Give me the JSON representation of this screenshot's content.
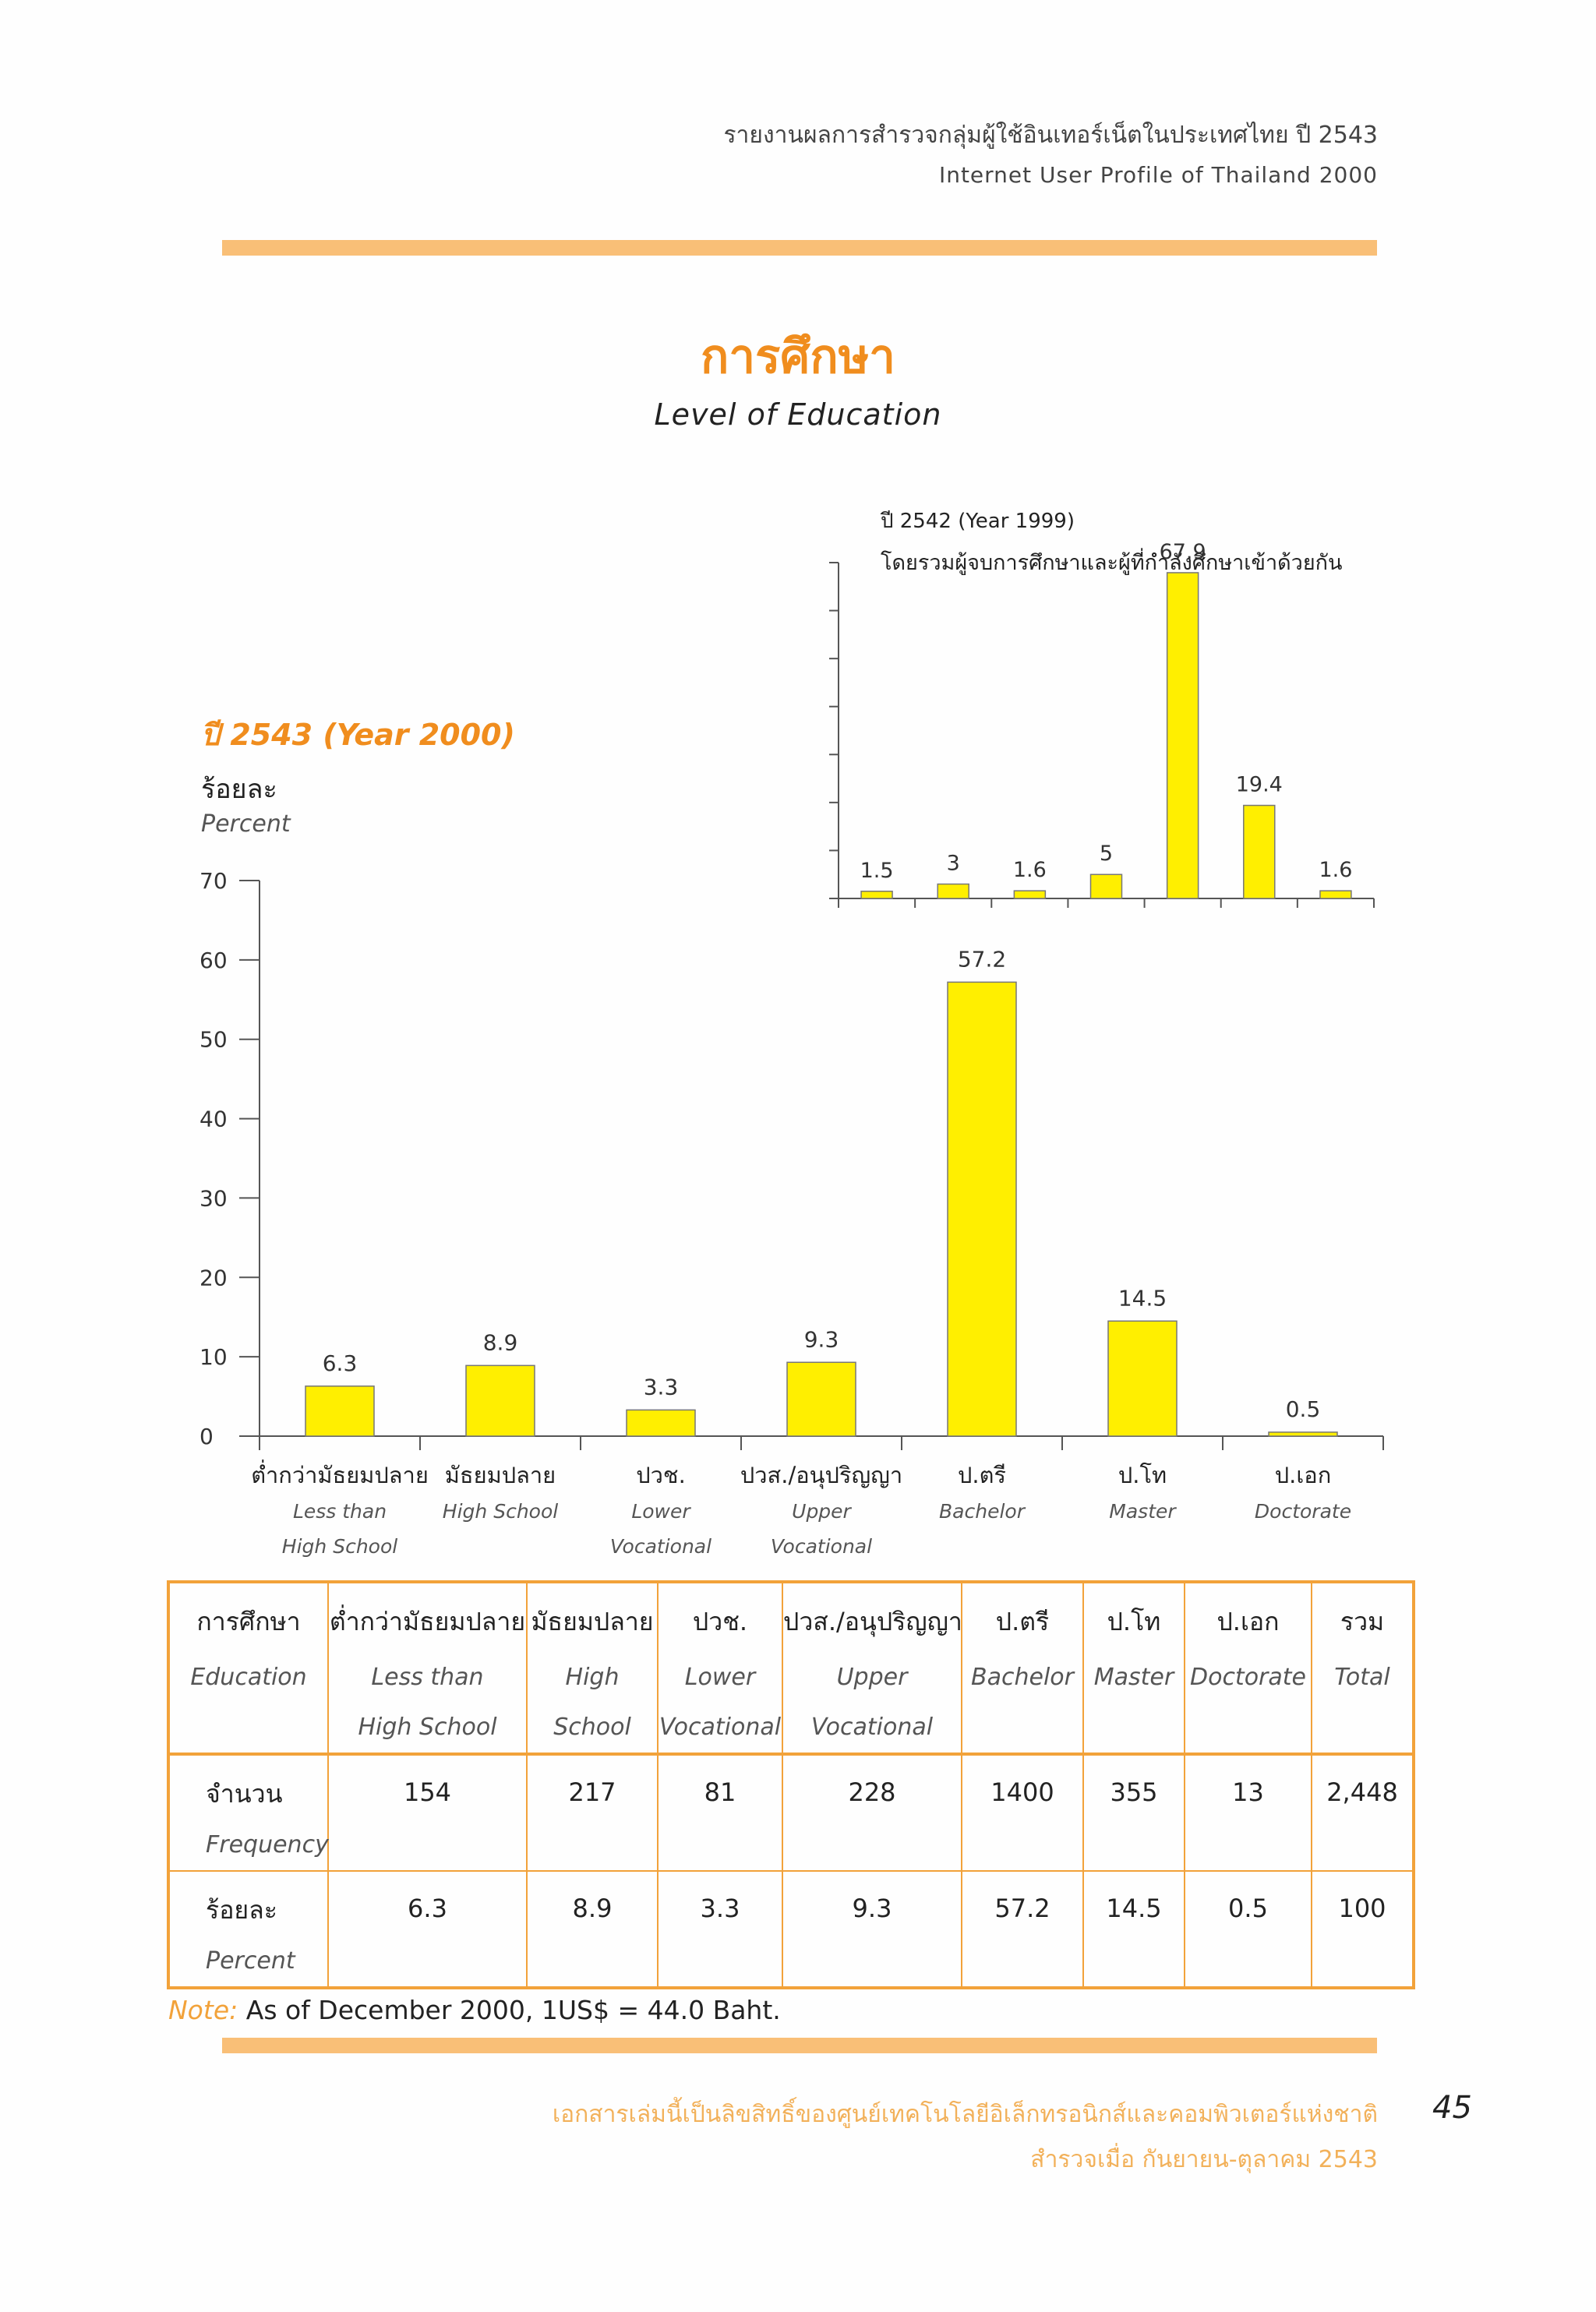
{
  "header": {
    "title_th": "รายงานผลการสำรวจกลุ่มผู้ใช้อินเทอร์เน็ตในประเทศไทย ปี 2543",
    "title_en": "Internet User Profile of Thailand 2000"
  },
  "page_title": {
    "th": "การศึกษา",
    "en": "Level of Education"
  },
  "main_chart": {
    "year_label": "ปี 2543 (Year 2000)",
    "unit_th": "ร้อยละ",
    "unit_en": "Percent"
  },
  "inset_chart": {
    "line1": "ปี 2542 (Year 1999)",
    "line2": "โดยรวมผู้จบการศึกษาและผู้ที่กำลังศึกษาเข้าด้วยกัน"
  },
  "chart_data": [
    {
      "type": "bar",
      "title": "ปี 2543 (Year 2000)",
      "ylabel": "ร้อยละ / Percent",
      "ylim": [
        0,
        70
      ],
      "yticks": [
        "0",
        "10",
        "20",
        "30",
        "40",
        "50",
        "60",
        "70"
      ],
      "categories_th": [
        "ต่ำกว่ามัธยมปลาย",
        "มัธยมปลาย",
        "ปวช.",
        "ปวส./อนุปริญญา",
        "ป.ตรี",
        "ป.โท",
        "ป.เอก"
      ],
      "categories_en_1": [
        "Less than",
        "High School",
        "Lower",
        "Upper",
        "Bachelor",
        "Master",
        "Doctorate"
      ],
      "categories_en_2": [
        "High School",
        "",
        "Vocational",
        "Vocational",
        "",
        "",
        ""
      ],
      "values": [
        6.3,
        8.9,
        3.3,
        9.3,
        57.2,
        14.5,
        0.5
      ],
      "labels": [
        "6.3",
        "8.9",
        "3.3",
        "9.3",
        "57.2",
        "14.5",
        "0.5"
      ],
      "bar_color": "#ffef00"
    },
    {
      "type": "bar",
      "title": "ปี 2542 (Year 1999)",
      "ylim": [
        0,
        70
      ],
      "values": [
        1.5,
        3,
        1.6,
        5,
        67.9,
        19.4,
        1.6
      ],
      "labels": [
        "1.5",
        "3",
        "1.6",
        "5",
        "67.9",
        "19.4",
        "1.6"
      ],
      "bar_color": "#ffef00"
    }
  ],
  "table": {
    "header": [
      {
        "th": "การศึกษา",
        "en1": "Education",
        "en2": ""
      },
      {
        "th": "ต่ำกว่ามัธยมปลาย",
        "en1": "Less than",
        "en2": "High School"
      },
      {
        "th": "มัธยมปลาย",
        "en1": "High",
        "en2": "School"
      },
      {
        "th": "ปวช.",
        "en1": "Lower",
        "en2": "Vocational"
      },
      {
        "th": "ปวส./อนุปริญญา",
        "en1": "Upper",
        "en2": "Vocational"
      },
      {
        "th": "ป.ตรี",
        "en1": "Bachelor",
        "en2": ""
      },
      {
        "th": "ป.โท",
        "en1": "Master",
        "en2": ""
      },
      {
        "th": "ป.เอก",
        "en1": "Doctorate",
        "en2": ""
      },
      {
        "th": "รวม",
        "en1": "Total",
        "en2": ""
      }
    ],
    "rows": [
      {
        "label_th": "จำนวน",
        "label_en": "Frequency",
        "values": [
          "154",
          "217",
          "81",
          "228",
          "1400",
          "355",
          "13",
          "2,448"
        ]
      },
      {
        "label_th": "ร้อยละ",
        "label_en": "Percent",
        "values": [
          "6.3",
          "8.9",
          "3.3",
          "9.3",
          "57.2",
          "14.5",
          "0.5",
          "100"
        ]
      }
    ]
  },
  "note": {
    "label": "Note:",
    "text": "As of December 2000, 1US$ = 44.0 Baht."
  },
  "footer": {
    "line1": "เอกสารเล่มนี้เป็นลิขสิทธิ์ของศูนย์เทคโนโลยีอิเล็กทรอนิกส์และคอมพิวเตอร์แห่งชาติ",
    "line2": "สำรวจเมื่อ กันยายน-ตุลาคม 2543",
    "page_number": "45"
  }
}
